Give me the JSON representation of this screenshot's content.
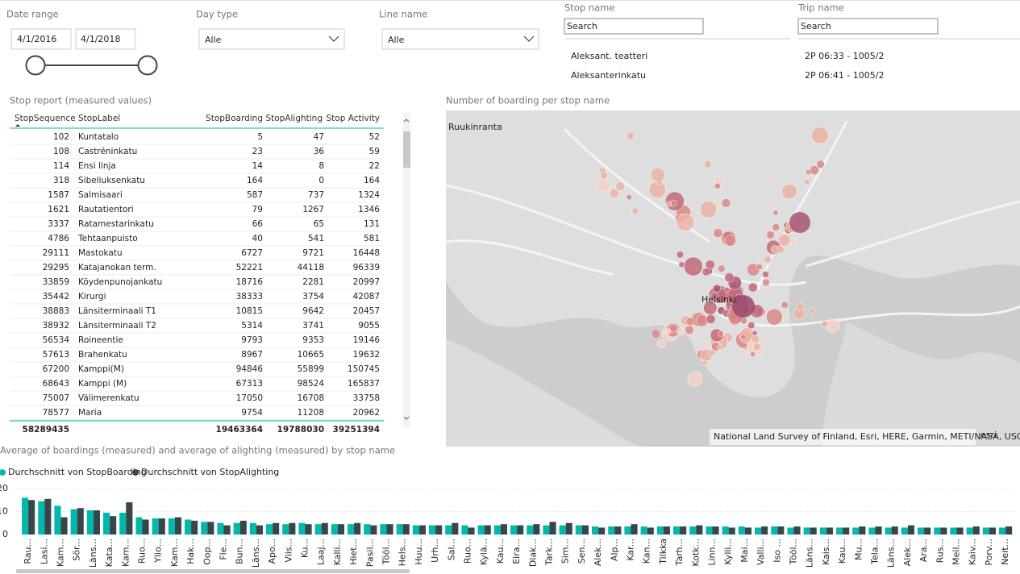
{
  "slicers": {
    "date_range": {
      "title": "Date range",
      "start": "4/1/2016",
      "end": "4/1/2018"
    },
    "day_type": {
      "title": "Day type",
      "value": "Alle"
    },
    "line_name": {
      "title": "Line name",
      "value": "Alle"
    },
    "stop_name": {
      "title": "Stop name",
      "placeholder": "Search",
      "items": [
        "Aleksant. teatteri",
        "Aleksanterinkatu"
      ]
    },
    "trip_name": {
      "title": "Trip name",
      "placeholder": "Search",
      "items": [
        "2P 06:33 - 1005/2",
        "2P 06:41 - 1005/2"
      ]
    }
  },
  "table": {
    "title": "Stop report (measured values)",
    "columns": [
      "StopSequence",
      "StopLabel",
      "StopBoarding",
      "StopAlighting",
      "Stop Activity"
    ],
    "rows": [
      [
        102,
        "Kuntatalo",
        5,
        47,
        52
      ],
      [
        108,
        "Castréninkatu",
        23,
        36,
        59
      ],
      [
        114,
        "Ensi linja",
        14,
        8,
        22
      ],
      [
        318,
        "Sibeliuksenkatu",
        164,
        0,
        164
      ],
      [
        1587,
        "Salmisaari",
        587,
        737,
        1324
      ],
      [
        1621,
        "Rautatientori",
        79,
        1267,
        1346
      ],
      [
        3337,
        "Ratamestarinkatu",
        66,
        65,
        131
      ],
      [
        4786,
        "Tehtaanpuisto",
        40,
        541,
        581
      ],
      [
        29111,
        "Mastokatu",
        6727,
        9721,
        16448
      ],
      [
        29295,
        "Katajanokan term.",
        52221,
        44118,
        96339
      ],
      [
        33859,
        "Köydenpunojankatu",
        18716,
        2281,
        20997
      ],
      [
        35442,
        "Kirurgi",
        38333,
        3754,
        42087
      ],
      [
        38883,
        "Länsiterminaali T1",
        10815,
        9642,
        20457
      ],
      [
        38932,
        "Länsiterminaali T2",
        5314,
        3741,
        9055
      ],
      [
        56534,
        "Roineentie",
        9793,
        9353,
        19146
      ],
      [
        57613,
        "Brahenkatu",
        8967,
        10665,
        19632
      ],
      [
        67200,
        "Kamppi(M)",
        94846,
        55899,
        150745
      ],
      [
        68643,
        "Kamppi (M)",
        67313,
        98524,
        165837
      ],
      [
        75007,
        "Välimerenkatu",
        17050,
        16708,
        33758
      ],
      [
        78577,
        "Maria",
        9754,
        11208,
        20962
      ]
    ],
    "totals": [
      58289435,
      19463364,
      19788030,
      39251394
    ]
  },
  "map": {
    "title": "Number of boarding per stop name",
    "places": [
      "Ruukinranta",
      "Helsinki"
    ],
    "attribution": "National Land Survey of Finland, Esri, HERE, Garmin, METI/NASA, USGS...",
    "logo": "esri"
  },
  "chart_data": {
    "type": "bar",
    "title": "Average of boardings (measured) and average of alighting (measured) by stop name",
    "categories": [
      "Rau...",
      "Lasi...",
      "Kam...",
      "Sör...",
      "Läns...",
      "Kata...",
      "Kam...",
      "Ruo...",
      "Ylio...",
      "Kam...",
      "Hak...",
      "Oop...",
      "Fle...",
      "Bun...",
      "Läns...",
      "Apo...",
      "Viis...",
      "Ku...",
      "Laaj...",
      "Kalli...",
      "Hiet...",
      "Pasil...",
      "Tööl...",
      "Hels...",
      "Huu...",
      "Urh...",
      "Sal...",
      "Ruo...",
      "Kylä...",
      "Kau...",
      "Eira...",
      "Diak...",
      "Tark...",
      "Sim...",
      "Sen...",
      "Alek...",
      "Alp...",
      "Kar...",
      "Kan...",
      "Tilkka",
      "Tarh...",
      "Kotk...",
      "Linn...",
      "Kylli...",
      "Mai...",
      "Valli...",
      "Iso ...",
      "Tööl...",
      "Läns...",
      "Kais...",
      "Kau...",
      "Mu...",
      "Tela...",
      "Läns...",
      "Alek...",
      "Ara...",
      "Rus...",
      "Meil...",
      "Kaiv...",
      "Porv...",
      "Neit..."
    ],
    "series": [
      {
        "name": "Durchschnitt von StopBoarding",
        "color": "#01b8aa",
        "values": [
          16,
          14.5,
          12.5,
          11,
          10.5,
          9.5,
          9.5,
          7.5,
          7,
          7,
          6.5,
          5.5,
          5,
          5,
          5,
          4.5,
          4.5,
          5,
          4.5,
          4.5,
          4.5,
          4.5,
          4.5,
          4.5,
          4,
          4,
          4,
          4,
          4,
          4,
          4,
          4,
          4,
          4,
          4,
          3.5,
          3.5,
          3.5,
          3.5,
          3.5,
          3.5,
          3.5,
          3.5,
          3.5,
          3.5,
          3,
          3.5,
          3,
          3,
          3,
          3,
          3,
          3,
          3,
          3,
          3,
          3,
          3,
          3,
          3,
          3
        ]
      },
      {
        "name": "Durchschnitt von StopAlighting",
        "color": "#374649",
        "values": [
          15,
          15.5,
          7.5,
          11.5,
          10.5,
          8,
          14,
          6.5,
          7,
          7.5,
          6,
          5.5,
          4,
          6,
          4,
          5,
          5,
          4.5,
          5,
          4.5,
          5,
          4,
          4.5,
          4.5,
          4,
          4,
          5,
          3,
          4,
          4.5,
          4,
          4.5,
          5.5,
          5,
          4,
          3,
          3.5,
          4.5,
          3,
          3.5,
          3.5,
          4,
          3.5,
          3,
          3,
          3.5,
          3.5,
          3.5,
          3,
          3,
          3,
          3.5,
          3.5,
          3.5,
          4,
          3,
          3,
          3,
          3.5,
          3,
          3.5
        ]
      }
    ],
    "ylim": [
      0,
      20
    ],
    "yticks": [
      0,
      10,
      20
    ],
    "grid": true,
    "legend": "top-left"
  }
}
